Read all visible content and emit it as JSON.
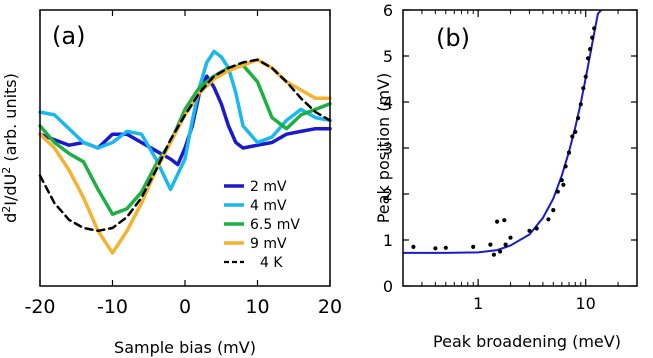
{
  "chart_data": [
    {
      "type": "line",
      "panel_label": "(a)",
      "xlabel": "Sample bias (mV)",
      "ylabel_main": "d",
      "ylabel_sup1": "2",
      "ylabel_mid": "I/dU",
      "ylabel_sup2": "2",
      "ylabel_end": " (arb. units)",
      "xlim": [
        -20,
        20
      ],
      "ylim": [
        0,
        1
      ],
      "xticks": [
        -20,
        -10,
        0,
        10,
        20
      ],
      "grid": false,
      "legend_position": "bottom-right",
      "series": [
        {
          "name": "2 mV",
          "color": "#1a1acc",
          "dash": "solid",
          "x": [
            -20,
            -18,
            -16,
            -14,
            -12,
            -10,
            -8,
            -6,
            -4,
            -2,
            -1,
            0,
            1,
            2,
            3,
            4,
            5,
            6,
            7,
            8,
            10,
            12,
            14,
            16,
            18,
            20
          ],
          "y": [
            0.55,
            0.53,
            0.51,
            0.52,
            0.5,
            0.55,
            0.55,
            0.52,
            0.49,
            0.46,
            0.44,
            0.5,
            0.58,
            0.7,
            0.76,
            0.72,
            0.66,
            0.58,
            0.52,
            0.5,
            0.51,
            0.52,
            0.55,
            0.56,
            0.57,
            0.57
          ]
        },
        {
          "name": "4 mV",
          "color": "#1ab8f0",
          "dash": "solid",
          "x": [
            -20,
            -18,
            -16,
            -14,
            -12,
            -10,
            -8,
            -6,
            -4,
            -2,
            0,
            1,
            2,
            3,
            4,
            5,
            6,
            7,
            8,
            10,
            12,
            14,
            16,
            18,
            20
          ],
          "y": [
            0.63,
            0.62,
            0.57,
            0.52,
            0.5,
            0.52,
            0.56,
            0.55,
            0.46,
            0.35,
            0.46,
            0.6,
            0.72,
            0.81,
            0.85,
            0.83,
            0.79,
            0.7,
            0.58,
            0.52,
            0.54,
            0.6,
            0.64,
            0.61,
            0.6
          ]
        },
        {
          "name": "6.5 mV",
          "color": "#1cb044",
          "dash": "solid",
          "x": [
            -20,
            -18,
            -16,
            -14,
            -12,
            -10,
            -8,
            -6,
            -4,
            -2,
            0,
            2,
            4,
            6,
            8,
            10,
            12,
            14,
            16,
            18,
            20
          ],
          "y": [
            0.58,
            0.52,
            0.48,
            0.45,
            0.35,
            0.26,
            0.28,
            0.34,
            0.44,
            0.52,
            0.64,
            0.72,
            0.76,
            0.79,
            0.8,
            0.74,
            0.61,
            0.57,
            0.62,
            0.64,
            0.66
          ]
        },
        {
          "name": "9 mV",
          "color": "#f5b230",
          "dash": "solid",
          "x": [
            -20,
            -18,
            -16,
            -14,
            -12,
            -10,
            -8,
            -6,
            -4,
            -2,
            0,
            2,
            4,
            6,
            8,
            10,
            12,
            14,
            16,
            18,
            20
          ],
          "y": [
            0.55,
            0.5,
            0.42,
            0.32,
            0.2,
            0.12,
            0.2,
            0.3,
            0.42,
            0.52,
            0.62,
            0.7,
            0.75,
            0.78,
            0.8,
            0.82,
            0.79,
            0.74,
            0.71,
            0.68,
            0.68
          ]
        },
        {
          "name": "4 K",
          "color": "#000000",
          "dash": "dashed",
          "x": [
            -20,
            -18,
            -16,
            -14,
            -12,
            -10,
            -8,
            -6,
            -4,
            -2,
            0,
            2,
            4,
            6,
            8,
            10,
            12,
            14,
            16,
            18,
            20
          ],
          "y": [
            0.4,
            0.3,
            0.24,
            0.21,
            0.2,
            0.21,
            0.25,
            0.32,
            0.42,
            0.53,
            0.62,
            0.7,
            0.76,
            0.79,
            0.81,
            0.82,
            0.79,
            0.74,
            0.68,
            0.63,
            0.6
          ]
        }
      ]
    },
    {
      "type": "scatter",
      "panel_label": "(b)",
      "xlabel": "Peak broadening (meV)",
      "ylabel": "Peak position (mV)",
      "xscale": "log",
      "xlim": [
        0.2,
        30
      ],
      "ylim": [
        0,
        6
      ],
      "xticks": [
        1,
        10
      ],
      "yticks": [
        0,
        1,
        2,
        3,
        4,
        5,
        6
      ],
      "grid": false,
      "points": {
        "color": "#000000",
        "x": [
          0.25,
          0.4,
          0.5,
          0.9,
          1.3,
          1.4,
          1.5,
          1.6,
          1.75,
          1.8,
          2.0,
          3.0,
          3.5,
          4.5,
          5.0,
          5.5,
          6.0,
          6.2,
          6.5,
          7.0,
          7.5,
          8.0,
          8.5,
          9.0,
          9.5,
          10.0,
          10.5,
          11.0,
          11.5,
          12.0
        ],
        "y": [
          0.85,
          0.82,
          0.83,
          0.85,
          0.9,
          0.68,
          1.4,
          0.75,
          1.43,
          0.9,
          1.05,
          1.2,
          1.25,
          1.45,
          1.65,
          2.05,
          2.3,
          2.2,
          2.6,
          2.9,
          3.25,
          3.35,
          3.65,
          3.95,
          4.3,
          4.55,
          4.95,
          5.15,
          5.4,
          5.6
        ]
      },
      "fit": {
        "color": "#1a1acc",
        "x": [
          0.2,
          0.5,
          1.0,
          1.5,
          2.0,
          3.0,
          4.0,
          5.0,
          6.0,
          7.0,
          8.0,
          9.0,
          10.0,
          11.0,
          12.0,
          13.0,
          14.0
        ],
        "y": [
          0.72,
          0.72,
          0.73,
          0.78,
          0.88,
          1.12,
          1.48,
          1.9,
          2.4,
          2.92,
          3.45,
          3.98,
          4.52,
          5.02,
          5.5,
          5.92,
          6.0
        ]
      }
    }
  ]
}
